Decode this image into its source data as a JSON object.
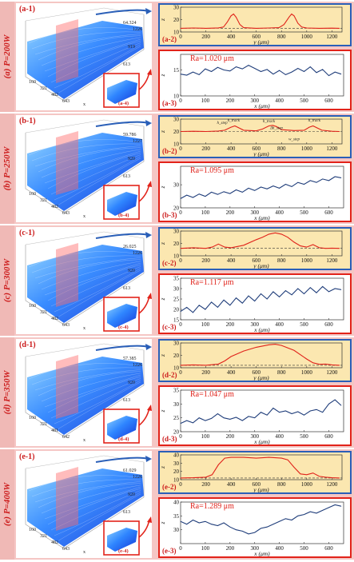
{
  "chart_data": [
    {
      "id": "a",
      "side_label": "(a) P=200W",
      "surface": {
        "label": "(a-1)",
        "inset_label": "(a-4)",
        "x_ticks": [
          "160",
          "321",
          "482",
          "643"
        ],
        "y_ticks": [
          "306",
          "613",
          "919",
          "1226"
        ],
        "z_max": "64.324",
        "x_axis": "x"
      },
      "profile": {
        "label": "(a-2)",
        "type": "line",
        "xlabel": "y (μm)",
        "ylabel": "z",
        "ylim": [
          10,
          30
        ],
        "yticks": [
          "10",
          "20",
          "30"
        ],
        "xlim": [
          0,
          1280
        ],
        "xticks": [
          "0",
          "200",
          "400",
          "600",
          "800",
          "1000",
          "1200"
        ],
        "dashed_level": 13,
        "x": [
          0,
          100,
          200,
          300,
          340,
          370,
          400,
          420,
          440,
          470,
          500,
          600,
          700,
          780,
          820,
          860,
          880,
          900,
          930,
          960,
          1000,
          1100,
          1200,
          1260
        ],
        "y": [
          13,
          13.2,
          13,
          13.3,
          14,
          18,
          23,
          24.5,
          22,
          16,
          13.5,
          13,
          13.2,
          13.5,
          16,
          22,
          24.5,
          23,
          17,
          14,
          13.2,
          13,
          13.1,
          13
        ]
      },
      "roughness": {
        "label": "(a-3)",
        "type": "line",
        "ra_text": "Ra=1.020 μm",
        "xlabel": "x (μm)",
        "ylabel": "z",
        "ylim": [
          10,
          18
        ],
        "yticks": [
          "10",
          "15"
        ],
        "xlim": [
          0,
          660
        ],
        "xticks": [
          "0",
          "100",
          "200",
          "300",
          "400",
          "500",
          "600"
        ],
        "x": [
          0,
          25,
          50,
          75,
          100,
          125,
          150,
          175,
          200,
          225,
          250,
          275,
          300,
          325,
          350,
          375,
          400,
          425,
          450,
          475,
          500,
          525,
          550,
          575,
          600,
          625,
          650
        ],
        "y": [
          14.2,
          14,
          14.6,
          14.1,
          15.2,
          14.7,
          15.5,
          15,
          14.8,
          15.6,
          15.2,
          15.9,
          15.3,
          14.7,
          15.1,
          14.2,
          14.9,
          14.1,
          14.6,
          15.3,
          14.7,
          15.6,
          14.5,
          15.1,
          13.9,
          14.6,
          14.2
        ]
      }
    },
    {
      "id": "b",
      "side_label": "(b) P=250W",
      "surface": {
        "label": "(b-1)",
        "inset_label": "(b-4)",
        "x_ticks": [
          "160",
          "321",
          "482",
          "643"
        ],
        "y_ticks": [
          "306",
          "613",
          "920",
          "1227"
        ],
        "z_max": "59.786",
        "x_axis": "x"
      },
      "profile": {
        "label": "(b-2)",
        "type": "line",
        "xlabel": "y (μm)",
        "ylabel": "z",
        "ylim": [
          10,
          30
        ],
        "yticks": [
          "10",
          "20",
          "30"
        ],
        "xlim": [
          0,
          1280
        ],
        "xticks": [
          "0",
          "200",
          "400",
          "600",
          "800",
          "1000",
          "1200"
        ],
        "dashed_level": 20,
        "x": [
          0,
          100,
          200,
          300,
          350,
          400,
          430,
          460,
          500,
          600,
          650,
          700,
          730,
          760,
          800,
          900,
          980,
          1020,
          1050,
          1080,
          1120,
          1200,
          1260
        ],
        "y": [
          20,
          20.2,
          20,
          20.4,
          21,
          23.5,
          24.5,
          23,
          21,
          20.5,
          22,
          24.5,
          25,
          24,
          21.5,
          20.8,
          21,
          23.5,
          24.5,
          23,
          21,
          20.2,
          20
        ],
        "annotations": [
          "h_track",
          "h_track",
          "h_track",
          "Δh_step",
          "w_step",
          "h_step"
        ]
      },
      "roughness": {
        "label": "(b-3)",
        "type": "line",
        "ra_text": "Ra=1.095 μm",
        "xlabel": "x (μm)",
        "ylabel": "z",
        "ylim": [
          20,
          38
        ],
        "yticks": [
          "20",
          "30"
        ],
        "xlim": [
          0,
          660
        ],
        "xticks": [
          "0",
          "100",
          "200",
          "300",
          "400",
          "500",
          "600"
        ],
        "x": [
          0,
          25,
          50,
          75,
          100,
          125,
          150,
          175,
          200,
          225,
          250,
          275,
          300,
          325,
          350,
          375,
          400,
          425,
          450,
          475,
          500,
          525,
          550,
          575,
          600,
          625,
          650
        ],
        "y": [
          24,
          25.5,
          24.5,
          26,
          25,
          26.8,
          25.8,
          27,
          26.2,
          27.8,
          26.8,
          28.5,
          27.5,
          29,
          28.2,
          29.5,
          28.5,
          30.2,
          29.2,
          31,
          30.2,
          31.8,
          31,
          32.5,
          31.8,
          33.5,
          33
        ]
      }
    },
    {
      "id": "c",
      "side_label": "(c) P=300W",
      "surface": {
        "label": "(c-1)",
        "inset_label": "(c-4)",
        "x_ticks": [
          "160",
          "321",
          "482",
          "643"
        ],
        "y_ticks": [
          "306",
          "613",
          "920",
          "1226"
        ],
        "z_max": "26.025",
        "x_axis": "x"
      },
      "profile": {
        "label": "(c-2)",
        "type": "line",
        "xlabel": "y (μm)",
        "ylabel": "z",
        "ylim": [
          10,
          30
        ],
        "yticks": [
          "10",
          "20",
          "30"
        ],
        "xlim": [
          0,
          1280
        ],
        "xticks": [
          "0",
          "200",
          "400",
          "600",
          "800",
          "1000",
          "1200"
        ],
        "dashed_level": 16,
        "x": [
          0,
          100,
          200,
          250,
          300,
          350,
          400,
          500,
          600,
          650,
          700,
          750,
          800,
          850,
          900,
          950,
          1000,
          1050,
          1100,
          1150,
          1200,
          1260
        ],
        "y": [
          16,
          16.5,
          16,
          17,
          19.5,
          17,
          16.5,
          18.5,
          23,
          25,
          27.5,
          28.5,
          27.5,
          25,
          21,
          18,
          17,
          19,
          16.5,
          16,
          16.2,
          16
        ]
      },
      "roughness": {
        "label": "(c-3)",
        "type": "line",
        "ra_text": "Ra=1.117 μm",
        "xlabel": "x (μm)",
        "ylabel": "z",
        "ylim": [
          15,
          35
        ],
        "yticks": [
          "15",
          "20",
          "25",
          "30",
          "35"
        ],
        "xlim": [
          0,
          660
        ],
        "xticks": [
          "0",
          "100",
          "200",
          "300",
          "400",
          "500",
          "600"
        ],
        "x": [
          0,
          25,
          50,
          75,
          100,
          125,
          150,
          175,
          200,
          225,
          250,
          275,
          300,
          325,
          350,
          375,
          400,
          425,
          450,
          475,
          500,
          525,
          550,
          575,
          600,
          625,
          650
        ],
        "y": [
          19,
          21,
          18.5,
          22,
          20,
          23.5,
          21,
          24.5,
          22,
          25.5,
          23,
          26.5,
          24,
          27.5,
          25,
          28.5,
          26,
          29,
          27,
          30,
          27.5,
          30.5,
          28,
          31,
          28.5,
          30,
          29.5
        ]
      }
    },
    {
      "id": "d",
      "side_label": "(d) P=350W",
      "surface": {
        "label": "(d-1)",
        "inset_label": "(d-4)",
        "x_ticks": [
          "160",
          "321",
          "481",
          "642"
        ],
        "y_ticks": [
          "306",
          "613",
          "920",
          "1226"
        ],
        "z_max": "57.385",
        "x_axis": "x"
      },
      "profile": {
        "label": "(d-2)",
        "type": "line",
        "xlabel": "y (μm)",
        "ylabel": "z",
        "ylim": [
          10,
          30
        ],
        "yticks": [
          "10",
          "20",
          "30"
        ],
        "xlim": [
          0,
          1280
        ],
        "xticks": [
          "0",
          "200",
          "400",
          "600",
          "800",
          "1000",
          "1200"
        ],
        "dashed_level": 12,
        "x": [
          0,
          100,
          200,
          300,
          350,
          400,
          500,
          600,
          700,
          750,
          800,
          900,
          1000,
          1050,
          1100,
          1150,
          1200,
          1260
        ],
        "y": [
          12,
          12.3,
          12,
          13,
          15.5,
          19,
          23.5,
          26.5,
          28.5,
          29,
          28,
          24,
          17,
          14,
          12.8,
          13,
          12.3,
          12
        ]
      },
      "roughness": {
        "label": "(d-3)",
        "type": "line",
        "ra_text": "Ra=1.047 μm",
        "xlabel": "x (μm)",
        "ylabel": "z",
        "ylim": [
          20,
          35
        ],
        "yticks": [
          "20",
          "25",
          "30",
          "35"
        ],
        "xlim": [
          0,
          660
        ],
        "xticks": [
          "0",
          "100",
          "200",
          "300",
          "400",
          "500",
          "600"
        ],
        "x": [
          0,
          25,
          50,
          75,
          100,
          125,
          150,
          175,
          200,
          225,
          250,
          275,
          300,
          325,
          350,
          375,
          400,
          425,
          450,
          475,
          500,
          525,
          550,
          575,
          600,
          625,
          650
        ],
        "y": [
          23,
          24,
          23.2,
          25,
          24,
          24.8,
          26.5,
          25,
          24.5,
          25.2,
          24,
          25.5,
          25,
          27,
          26,
          28.5,
          27,
          27.5,
          26.5,
          27.2,
          26,
          27.5,
          28,
          27,
          30,
          31.5,
          29.5
        ]
      }
    },
    {
      "id": "e",
      "side_label": "(e) P=400W",
      "surface": {
        "label": "(e-1)",
        "inset_label": "(e-4)",
        "x_ticks": [
          "160",
          "321",
          "482",
          "643"
        ],
        "y_ticks": [
          "306",
          "613",
          "920",
          "1226"
        ],
        "z_max": "61.029",
        "x_axis": "x"
      },
      "profile": {
        "label": "(e-2)",
        "type": "line",
        "xlabel": "y (μm)",
        "ylabel": "z",
        "ylim": [
          10,
          40
        ],
        "yticks": [
          "10",
          "20",
          "30",
          "40"
        ],
        "xlim": [
          0,
          1280
        ],
        "xticks": [
          "0",
          "200",
          "400",
          "600",
          "800",
          "1000",
          "1200"
        ],
        "dashed_level": 12,
        "x": [
          0,
          100,
          200,
          250,
          300,
          350,
          400,
          500,
          600,
          700,
          800,
          850,
          900,
          950,
          1000,
          1050,
          1100,
          1150,
          1200,
          1260
        ],
        "y": [
          12,
          12.3,
          13,
          16,
          28,
          36,
          37,
          37,
          36,
          37,
          36,
          34,
          25,
          17,
          16,
          18,
          14,
          13,
          12.3,
          12
        ]
      },
      "roughness": {
        "label": "(e-3)",
        "type": "line",
        "ra_text": "Ra=1.289 μm",
        "xlabel": "x (μm)",
        "ylabel": "z",
        "ylim": [
          25,
          40
        ],
        "yticks": [
          "30",
          "35",
          "40"
        ],
        "xlim": [
          0,
          660
        ],
        "xticks": [
          "0",
          "100",
          "200",
          "300",
          "400",
          "500",
          "600"
        ],
        "x": [
          0,
          25,
          50,
          75,
          100,
          125,
          150,
          175,
          200,
          225,
          250,
          275,
          300,
          325,
          350,
          375,
          400,
          425,
          450,
          475,
          500,
          525,
          550,
          575,
          600,
          625,
          650
        ],
        "y": [
          33,
          32,
          33.5,
          32.5,
          33,
          32,
          31.5,
          32.5,
          31,
          30,
          29.5,
          28.5,
          29,
          30.5,
          31,
          32,
          33,
          34,
          33.5,
          35,
          35.5,
          36.5,
          36,
          37,
          38,
          39,
          38.5
        ]
      }
    }
  ]
}
